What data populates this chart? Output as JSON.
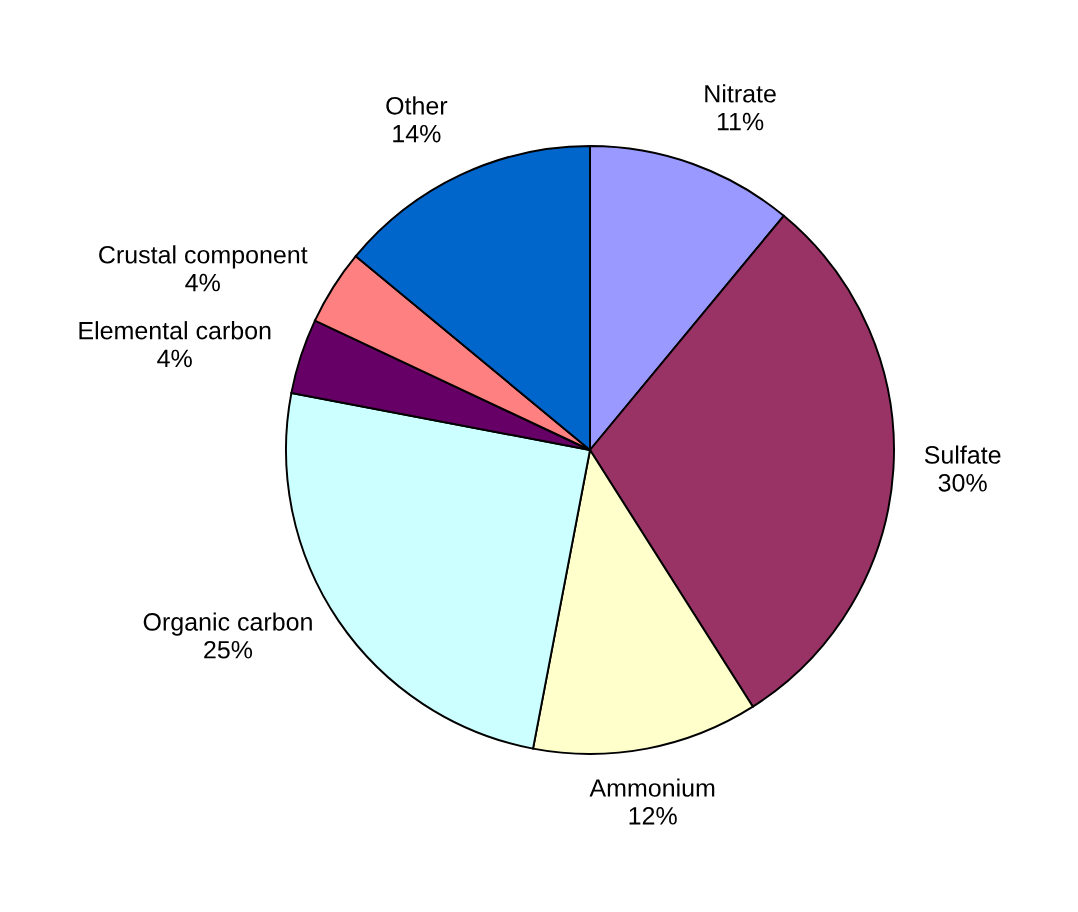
{
  "chart_data": {
    "type": "pie",
    "categories": [
      "Nitrate",
      "Sulfate",
      "Ammonium",
      "Organic carbon",
      "Elemental carbon",
      "Crustal component",
      "Other"
    ],
    "values": [
      11,
      30,
      12,
      25,
      4,
      4,
      14
    ],
    "colors": [
      "#9999ff",
      "#993366",
      "#ffffcc",
      "#ccffff",
      "#660066",
      "#ff8080",
      "#0066cc"
    ],
    "value_labels": [
      "11%",
      "30%",
      "12%",
      "25%",
      "4%",
      "4%",
      "14%"
    ]
  }
}
